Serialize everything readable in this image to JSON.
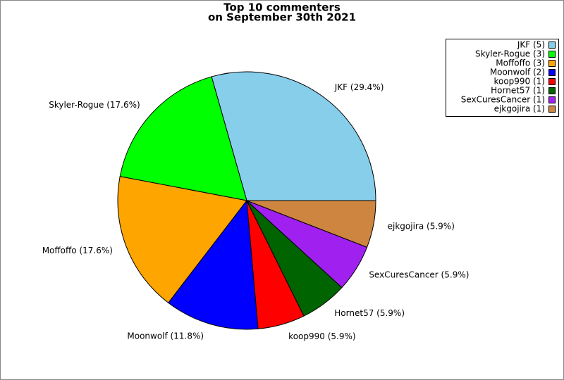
{
  "chart_data": {
    "type": "pie",
    "title": "Top 10 commenters",
    "subtitle": "on September 30th 2021",
    "categories": [
      "JKF (5)",
      "Skyler-Rogue (3)",
      "Moffoffo (3)",
      "Moonwolf (2)",
      "koop990 (1)",
      "Hornet57 (1)",
      "SexCuresCancer (1)",
      "ejkgojira (1)"
    ],
    "values": [
      29.4,
      17.6,
      17.6,
      11.8,
      5.9,
      5.9,
      5.9,
      5.9
    ],
    "value_labels": [
      "JKF (29.4%)",
      "Skyler-Rogue (17.6%)",
      "Moffoffo (17.6%)",
      "Moonwolf (11.8%)",
      "koop990 (5.9%)",
      "Hornet57 (5.9%)",
      "SexCuresCancer (5.9%)",
      "ejkgojira (5.9%)"
    ],
    "colors": [
      "#87ceeb",
      "#00ff00",
      "#ffa500",
      "#0000ff",
      "#ff0000",
      "#006400",
      "#a020f0",
      "#cd853f"
    ],
    "legend": "top-right"
  }
}
